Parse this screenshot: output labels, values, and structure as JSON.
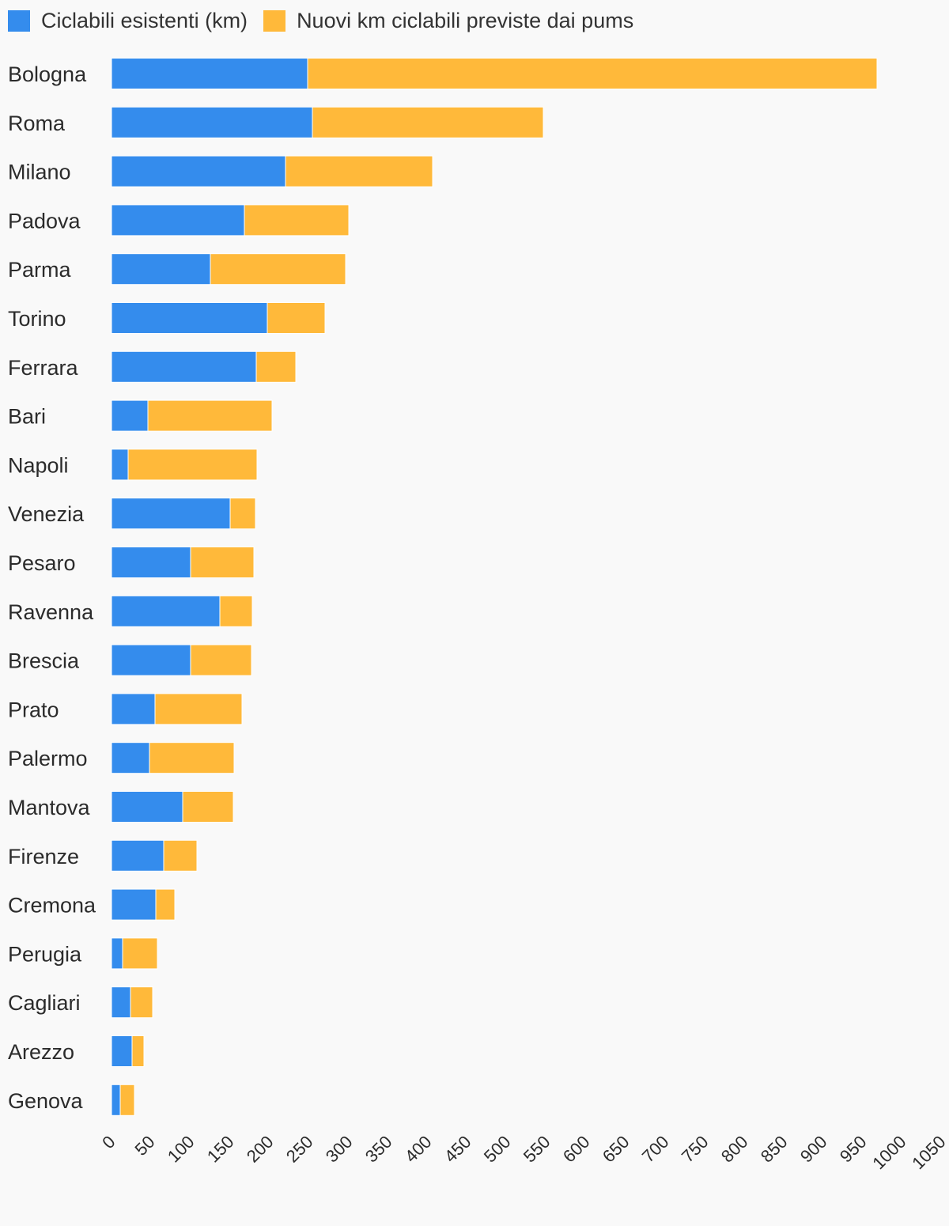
{
  "chart_data": {
    "type": "bar",
    "orientation": "horizontal",
    "stacked": true,
    "title": "",
    "xlabel": "",
    "ylabel": "",
    "xlim": [
      0,
      1050
    ],
    "x_ticks": [
      "0",
      "50",
      "100",
      "150",
      "200",
      "250",
      "300",
      "350",
      "400",
      "450",
      "500",
      "550",
      "600",
      "650",
      "700",
      "750",
      "800",
      "850",
      "900",
      "950",
      "1000",
      "1050"
    ],
    "grid": false,
    "legend_position": "top-left",
    "categories": [
      "Bologna",
      "Roma",
      "Milano",
      "Padova",
      "Parma",
      "Torino",
      "Ferrara",
      "Bari",
      "Napoli",
      "Venezia",
      "Pesaro",
      "Ravenna",
      "Brescia",
      "Prato",
      "Palermo",
      "Mantova",
      "Firenze",
      "Cremona",
      "Perugia",
      "Cagliari",
      "Arezzo",
      "Genova"
    ],
    "series": [
      {
        "name": "Ciclabili esistenti (km)",
        "color": "#348ced",
        "values": [
          248,
          254,
          220,
          168,
          125,
          197,
          183,
          46,
          21,
          150,
          100,
          137,
          100,
          55,
          48,
          90,
          66,
          56,
          14,
          24,
          26,
          11
        ]
      },
      {
        "name": "Nuovi km ciclabili previste dai pums",
        "color": "#ffb93a",
        "values": [
          720,
          292,
          186,
          132,
          171,
          73,
          50,
          157,
          163,
          32,
          80,
          41,
          77,
          110,
          107,
          64,
          42,
          24,
          44,
          28,
          15,
          18
        ]
      }
    ]
  }
}
